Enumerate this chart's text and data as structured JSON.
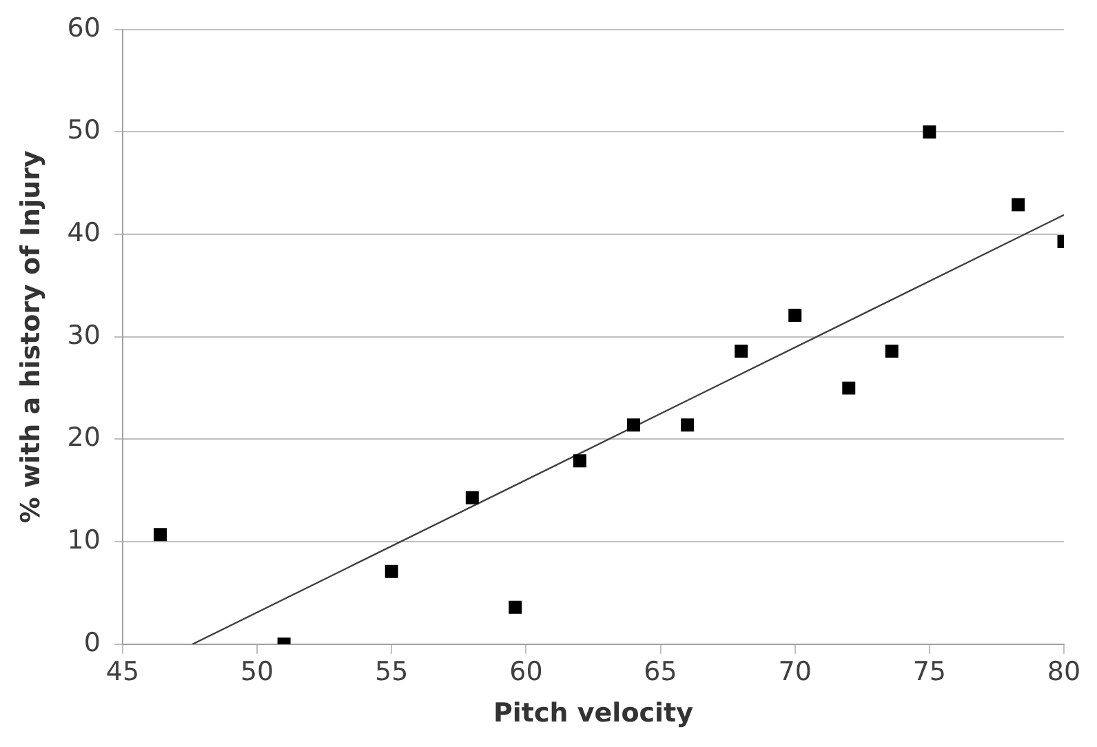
{
  "chart_data": {
    "type": "scatter",
    "xlabel": "Pitch velocity",
    "ylabel": "% with a history of Injury",
    "x": [
      46.4,
      51,
      55,
      58,
      59.6,
      62,
      64,
      66,
      68,
      70,
      72,
      73.6,
      75,
      78.3,
      80
    ],
    "series": [
      {
        "type": "scatter",
        "color": "#000000",
        "marker": "square",
        "values": [
          10.7,
          0,
          7.1,
          14.3,
          3.6,
          17.9,
          21.4,
          21.4,
          28.6,
          32.1,
          25,
          28.6,
          50,
          42.9,
          39.3
        ]
      },
      {
        "type": "line",
        "color": "#404040",
        "marker": "none",
        "x": [
          47.6,
          80
        ],
        "values": [
          0,
          41.9
        ]
      }
    ],
    "xlim": [
      45,
      80
    ],
    "xticks": [
      45,
      50,
      55,
      60,
      65,
      70,
      75,
      80
    ],
    "ylim": [
      0,
      60
    ],
    "yticks": [
      0,
      10,
      20,
      30,
      40,
      50,
      60
    ],
    "grid": "y",
    "legend": false
  }
}
